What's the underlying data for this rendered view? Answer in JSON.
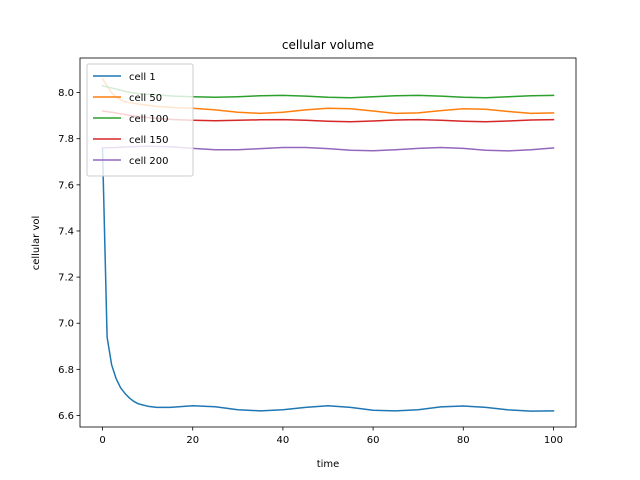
{
  "chart_data": {
    "type": "line",
    "title": "cellular volume",
    "xlabel": "time",
    "ylabel": "cellular vol",
    "xlim": [
      -5,
      105
    ],
    "ylim": [
      6.55,
      8.15
    ],
    "xticks": [
      0,
      20,
      40,
      60,
      80,
      100
    ],
    "yticks": [
      6.6,
      6.8,
      7.0,
      7.2,
      7.4,
      7.6,
      7.8,
      8.0
    ],
    "ytick_labels": [
      "6.6",
      "6.8",
      "7.0",
      "7.2",
      "7.4",
      "7.6",
      "7.8",
      "8.0"
    ],
    "legend_position": "top-left",
    "grid": false,
    "series": [
      {
        "name": "cell 1",
        "color": "#1f77b4",
        "x": [
          0,
          1,
          2,
          3,
          4,
          5,
          6,
          7,
          8,
          10,
          12,
          15,
          20,
          25,
          30,
          35,
          40,
          45,
          50,
          55,
          60,
          65,
          70,
          75,
          80,
          85,
          90,
          95,
          100
        ],
        "y": [
          7.76,
          6.94,
          6.82,
          6.76,
          6.72,
          6.695,
          6.675,
          6.66,
          6.65,
          6.64,
          6.635,
          6.635,
          6.642,
          6.638,
          6.625,
          6.62,
          6.625,
          6.635,
          6.642,
          6.635,
          6.623,
          6.62,
          6.625,
          6.637,
          6.641,
          6.635,
          6.624,
          6.619,
          6.62
        ]
      },
      {
        "name": "cell 50",
        "color": "#ff7f0e",
        "x": [
          0,
          1,
          2,
          3,
          5,
          8,
          12,
          16,
          20,
          25,
          30,
          35,
          40,
          45,
          50,
          55,
          60,
          65,
          70,
          75,
          80,
          85,
          90,
          95,
          100
        ],
        "y": [
          8.06,
          8.03,
          8.0,
          7.98,
          7.96,
          7.95,
          7.94,
          7.935,
          7.932,
          7.925,
          7.915,
          7.91,
          7.915,
          7.925,
          7.932,
          7.93,
          7.92,
          7.91,
          7.912,
          7.922,
          7.93,
          7.928,
          7.918,
          7.91,
          7.912
        ]
      },
      {
        "name": "cell 100",
        "color": "#2ca02c",
        "x": [
          0,
          2,
          5,
          8,
          12,
          16,
          20,
          25,
          30,
          35,
          40,
          45,
          50,
          55,
          60,
          65,
          70,
          75,
          80,
          85,
          90,
          95,
          100
        ],
        "y": [
          8.03,
          8.02,
          8.005,
          7.995,
          7.99,
          7.985,
          7.982,
          7.98,
          7.982,
          7.986,
          7.988,
          7.985,
          7.98,
          7.978,
          7.982,
          7.986,
          7.988,
          7.985,
          7.98,
          7.978,
          7.982,
          7.986,
          7.988
        ]
      },
      {
        "name": "cell 150",
        "color": "#d62728",
        "x": [
          0,
          2,
          5,
          8,
          12,
          16,
          20,
          25,
          30,
          35,
          40,
          45,
          50,
          55,
          60,
          65,
          70,
          75,
          80,
          85,
          90,
          95,
          100
        ],
        "y": [
          7.92,
          7.915,
          7.905,
          7.895,
          7.888,
          7.883,
          7.88,
          7.878,
          7.88,
          7.882,
          7.883,
          7.88,
          7.876,
          7.874,
          7.877,
          7.881,
          7.883,
          7.88,
          7.876,
          7.874,
          7.877,
          7.881,
          7.883
        ]
      },
      {
        "name": "cell 200",
        "color": "#9467bd",
        "x": [
          0,
          3,
          6,
          10,
          15,
          20,
          25,
          30,
          35,
          40,
          45,
          50,
          55,
          60,
          65,
          70,
          75,
          80,
          85,
          90,
          95,
          100
        ],
        "y": [
          7.76,
          7.762,
          7.765,
          7.767,
          7.765,
          7.758,
          7.752,
          7.752,
          7.757,
          7.762,
          7.762,
          7.757,
          7.75,
          7.748,
          7.752,
          7.758,
          7.762,
          7.758,
          7.75,
          7.747,
          7.752,
          7.76
        ]
      }
    ]
  }
}
